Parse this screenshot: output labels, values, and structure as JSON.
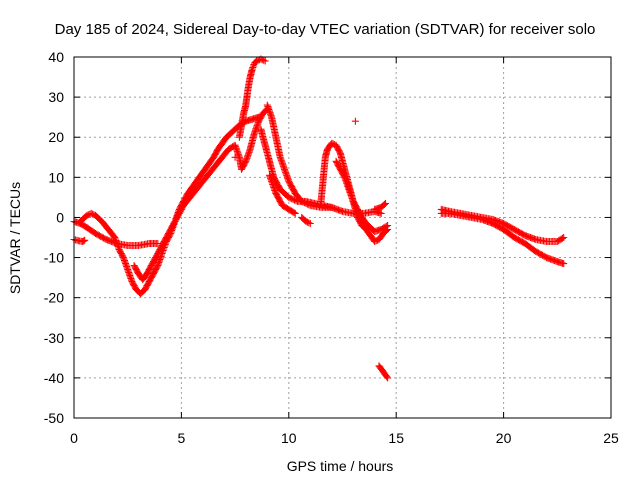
{
  "chart_data": {
    "type": "scatter",
    "title": "Day 185 of 2024, Sidereal Day-to-day VTEC variation (SDTVAR) for receiver solo",
    "xlabel": "GPS time / hours",
    "ylabel": "SDTVAR / TECUs",
    "xlim": [
      0,
      25
    ],
    "ylim": [
      -50,
      40
    ],
    "xticks": [
      0,
      5,
      10,
      15,
      20,
      25
    ],
    "yticks": [
      -50,
      -40,
      -30,
      -20,
      -10,
      0,
      10,
      20,
      30,
      40
    ],
    "grid": true,
    "marker": "+",
    "series": [
      {
        "name": "SDTVAR",
        "color": "#ff0000",
        "segments": [
          [
            [
              0.0,
              -5.5
            ],
            [
              0.2,
              -5.8
            ],
            [
              0.4,
              -6.0
            ],
            [
              0.5,
              -5.7
            ]
          ],
          [
            [
              0.0,
              -1.0
            ],
            [
              0.3,
              -1.5
            ],
            [
              0.6,
              -2.5
            ],
            [
              1.0,
              -4.0
            ],
            [
              1.5,
              -5.5
            ],
            [
              2.0,
              -6.5
            ],
            [
              2.5,
              -7.0
            ],
            [
              3.0,
              -7.0
            ],
            [
              3.5,
              -6.5
            ],
            [
              3.9,
              -6.5
            ]
          ],
          [
            [
              0.3,
              -1.0
            ],
            [
              0.6,
              0.5
            ],
            [
              0.8,
              1.0
            ],
            [
              1.0,
              0.5
            ],
            [
              1.3,
              -1.0
            ],
            [
              1.6,
              -3.0
            ],
            [
              1.9,
              -5.0
            ],
            [
              2.1,
              -8.0
            ],
            [
              2.3,
              -10.0
            ],
            [
              2.5,
              -13.0
            ],
            [
              2.7,
              -16.0
            ],
            [
              2.9,
              -18.0
            ],
            [
              3.1,
              -19.0
            ],
            [
              3.3,
              -18.0
            ],
            [
              3.5,
              -16.0
            ],
            [
              3.7,
              -14.0
            ],
            [
              3.9,
              -12.0
            ],
            [
              4.1,
              -9.0
            ],
            [
              4.3,
              -6.0
            ],
            [
              4.5,
              -4.0
            ],
            [
              4.7,
              -1.0
            ],
            [
              4.9,
              2.0
            ],
            [
              5.1,
              4.0
            ],
            [
              5.3,
              6.0
            ],
            [
              5.5,
              7.5
            ],
            [
              5.7,
              9.0
            ],
            [
              5.9,
              10.5
            ],
            [
              6.1,
              12.0
            ],
            [
              6.3,
              13.5
            ],
            [
              6.5,
              15.0
            ],
            [
              6.7,
              17.0
            ],
            [
              6.9,
              18.5
            ],
            [
              7.1,
              20.0
            ],
            [
              7.3,
              21.0
            ],
            [
              7.5,
              22.0
            ],
            [
              7.7,
              23.0
            ],
            [
              8.0,
              24.0
            ],
            [
              8.3,
              24.5
            ],
            [
              8.6,
              25.0
            ]
          ],
          [
            [
              2.8,
              -12.0
            ],
            [
              3.0,
              -14.0
            ],
            [
              3.2,
              -15.5
            ],
            [
              3.4,
              -14.0
            ],
            [
              3.6,
              -12.0
            ],
            [
              3.8,
              -10.0
            ],
            [
              4.0,
              -8.0
            ],
            [
              4.2,
              -6.0
            ],
            [
              4.5,
              -3.0
            ],
            [
              4.8,
              0.0
            ],
            [
              5.1,
              3.0
            ],
            [
              5.4,
              5.0
            ],
            [
              5.7,
              7.0
            ],
            [
              6.0,
              9.0
            ],
            [
              6.3,
              11.0
            ],
            [
              6.6,
              13.0
            ],
            [
              6.9,
              15.0
            ],
            [
              7.2,
              17.0
            ],
            [
              7.5,
              18.0
            ],
            [
              7.7,
              15.0
            ],
            [
              7.8,
              12.0
            ],
            [
              8.0,
              14.0
            ],
            [
              8.2,
              17.0
            ],
            [
              8.4,
              21.0
            ],
            [
              8.6,
              24.0
            ],
            [
              8.8,
              26.0
            ],
            [
              9.0,
              27.0
            ]
          ],
          [
            [
              7.7,
              20.0
            ],
            [
              7.8,
              23.0
            ],
            [
              7.9,
              26.0
            ],
            [
              8.0,
              28.0
            ],
            [
              8.1,
              32.0
            ],
            [
              8.2,
              35.0
            ],
            [
              8.3,
              37.0
            ],
            [
              8.4,
              38.5
            ],
            [
              8.5,
              39.0
            ],
            [
              8.7,
              39.5
            ],
            [
              8.9,
              39.0
            ]
          ],
          [
            [
              9.0,
              28.0
            ],
            [
              9.2,
              25.0
            ],
            [
              9.4,
              20.0
            ],
            [
              9.6,
              15.0
            ],
            [
              9.8,
              12.0
            ],
            [
              10.0,
              9.0
            ],
            [
              10.3,
              6.0
            ],
            [
              10.6,
              4.0
            ],
            [
              11.0,
              3.0
            ],
            [
              11.5,
              2.5
            ],
            [
              12.0,
              2.5
            ]
          ],
          [
            [
              8.7,
              22.0
            ],
            [
              8.9,
              18.0
            ],
            [
              9.1,
              14.0
            ],
            [
              9.3,
              10.0
            ],
            [
              9.6,
              7.0
            ],
            [
              10.0,
              5.0
            ],
            [
              10.4,
              4.0
            ],
            [
              10.8,
              4.0
            ],
            [
              11.2,
              3.5
            ],
            [
              11.6,
              3.0
            ],
            [
              12.0,
              2.5
            ],
            [
              12.5,
              1.5
            ],
            [
              13.0,
              1.0
            ],
            [
              13.5,
              1.0
            ],
            [
              14.0,
              1.5
            ],
            [
              14.3,
              1.0
            ]
          ],
          [
            [
              9.1,
              10.5
            ],
            [
              9.4,
              6.0
            ],
            [
              9.7,
              3.0
            ],
            [
              10.0,
              2.0
            ],
            [
              10.3,
              1.0
            ]
          ],
          [
            [
              10.6,
              0.0
            ],
            [
              10.8,
              -1.0
            ],
            [
              11.0,
              -1.5
            ]
          ],
          [
            [
              11.5,
              4.0
            ],
            [
              11.7,
              15.0
            ],
            [
              11.8,
              17.0
            ],
            [
              12.0,
              18.5
            ],
            [
              12.2,
              18.0
            ],
            [
              12.4,
              16.0
            ],
            [
              12.6,
              12.0
            ],
            [
              12.8,
              8.0
            ],
            [
              13.0,
              4.0
            ],
            [
              13.2,
              0.0
            ],
            [
              13.4,
              -2.0
            ],
            [
              13.6,
              -3.0
            ],
            [
              13.8,
              -4.5
            ],
            [
              14.0,
              -6.0
            ],
            [
              14.2,
              -5.5
            ],
            [
              14.4,
              -4.0
            ],
            [
              14.6,
              -3.0
            ]
          ],
          [
            [
              12.2,
              14.0
            ],
            [
              12.4,
              12.0
            ],
            [
              12.6,
              10.0
            ],
            [
              12.8,
              7.0
            ],
            [
              13.0,
              4.0
            ],
            [
              13.2,
              2.0
            ],
            [
              13.4,
              0.0
            ],
            [
              13.6,
              -1.5
            ],
            [
              13.8,
              -2.5
            ],
            [
              14.0,
              -3.5
            ],
            [
              14.3,
              -3.0
            ],
            [
              14.6,
              -2.0
            ]
          ],
          [
            [
              14.0,
              2.0
            ],
            [
              14.3,
              2.5
            ],
            [
              14.5,
              3.5
            ]
          ],
          [
            [
              14.2,
              -37.0
            ],
            [
              14.4,
              -38.5
            ],
            [
              14.6,
              -40.0
            ]
          ],
          [
            [
              17.1,
              2.0
            ],
            [
              17.5,
              1.5
            ],
            [
              18.0,
              1.0
            ],
            [
              18.5,
              0.5
            ],
            [
              19.0,
              0.0
            ],
            [
              19.5,
              -0.5
            ],
            [
              20.0,
              -1.5
            ],
            [
              20.5,
              -3.0
            ],
            [
              21.0,
              -4.5
            ],
            [
              21.5,
              -5.5
            ],
            [
              22.0,
              -6.0
            ],
            [
              22.5,
              -6.0
            ],
            [
              22.8,
              -5.0
            ]
          ],
          [
            [
              17.1,
              1.0
            ],
            [
              17.5,
              1.0
            ],
            [
              18.0,
              0.5
            ],
            [
              18.5,
              0.0
            ],
            [
              19.0,
              -0.5
            ],
            [
              19.5,
              -1.5
            ],
            [
              20.0,
              -3.0
            ],
            [
              20.5,
              -5.0
            ],
            [
              21.0,
              -6.5
            ],
            [
              21.5,
              -8.5
            ],
            [
              22.0,
              -10.0
            ],
            [
              22.5,
              -11.0
            ],
            [
              22.8,
              -11.5
            ]
          ],
          [
            [
              7.5,
              15.0
            ]
          ],
          [
            [
              13.1,
              24.0
            ]
          ]
        ]
      }
    ]
  }
}
